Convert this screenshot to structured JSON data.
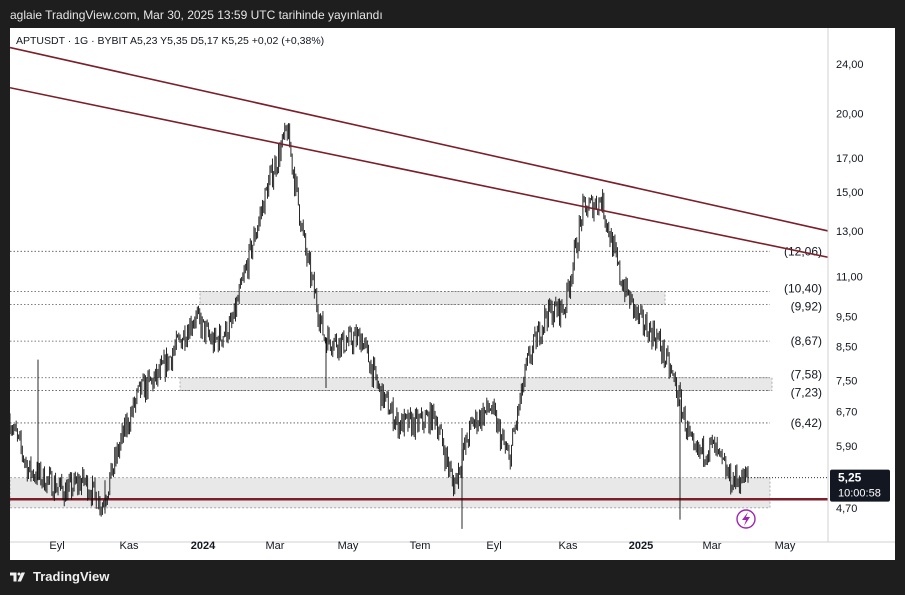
{
  "header": {
    "publish_line": "aglaie TradingView.com, Mar 30, 2025 13:59 UTC tarihinde yayınlandı"
  },
  "footer": {
    "brand": "TradingView"
  },
  "chart_data": {
    "type": "candlestick",
    "symbol_line": "APTUSDT · 1G · BYBIT  A5,23  Y5,35  D5,17  K5,25  +0,02 (+0,38%)",
    "price_axis_ticks": [
      "24,00",
      "20,00",
      "17,00",
      "15,00",
      "13,00",
      "11,00",
      "9,50",
      "8,50",
      "7,50",
      "6,70",
      "5,90",
      "4,70"
    ],
    "time_axis_ticks": [
      "Eyl",
      "Kas",
      "2024",
      "Mar",
      "May",
      "Tem",
      "Eyl",
      "Kas",
      "2025",
      "Mar",
      "May"
    ],
    "time_axis_bold": [
      "2024",
      "2025"
    ],
    "current_price": {
      "value": 5.25,
      "label": "5,25",
      "countdown": "10:00:58"
    },
    "horizontal_levels": [
      {
        "value": 12.06,
        "label": "(12,06)"
      },
      {
        "value": 10.4,
        "label": "(10,40)"
      },
      {
        "value": 9.92,
        "label": "(9,92)"
      },
      {
        "value": 8.67,
        "label": "(8,67)"
      },
      {
        "value": 7.58,
        "label": "(7,58)"
      },
      {
        "value": 7.23,
        "label": "(7,23)"
      },
      {
        "value": 6.42,
        "label": "(6,42)"
      }
    ],
    "zones": [
      {
        "low": 9.92,
        "high": 10.4
      },
      {
        "low": 7.23,
        "high": 7.58
      },
      {
        "low": 4.7,
        "high": 5.25
      }
    ],
    "support_line": {
      "value": 4.85
    },
    "trendlines": [
      {
        "name": "upper",
        "start": {
          "period": "2023-07",
          "price": 25.5
        },
        "end": {
          "period": "2025-05",
          "price": 13.0
        }
      },
      {
        "name": "lower",
        "start": {
          "period": "2023-07",
          "price": 22.0
        },
        "end": {
          "period": "2025-05",
          "price": 11.8
        }
      }
    ],
    "price_path": [
      [
        "2023-08",
        6.5
      ],
      [
        "2023-08-mid",
        5.4
      ],
      [
        "2023-09",
        5.2
      ],
      [
        "2023-09-mid",
        5.0
      ],
      [
        "2023-10",
        5.2
      ],
      [
        "2023-10-mid",
        4.75
      ],
      [
        "2023-11",
        6.0
      ],
      [
        "2023-11-mid",
        7.2
      ],
      [
        "2023-12",
        7.6
      ],
      [
        "2023-12-mid",
        8.5
      ],
      [
        "2024-01",
        9.5
      ],
      [
        "2024-01-mid",
        8.6
      ],
      [
        "2024-02",
        9.2
      ],
      [
        "2024-02-mid",
        12.0
      ],
      [
        "2024-03",
        15.5
      ],
      [
        "2024-03-mid",
        18.8
      ],
      [
        "2024-04",
        12.0
      ],
      [
        "2024-04-mid",
        8.8
      ],
      [
        "2024-05",
        8.6
      ],
      [
        "2024-05-mid",
        8.8
      ],
      [
        "2024-06",
        7.2
      ],
      [
        "2024-06-mid",
        6.4
      ],
      [
        "2024-07",
        6.4
      ],
      [
        "2024-07-mid",
        6.6
      ],
      [
        "2024-08",
        5.1
      ],
      [
        "2024-08-mid",
        6.4
      ],
      [
        "2024-09",
        6.8
      ],
      [
        "2024-09-mid",
        5.6
      ],
      [
        "2024-10",
        8.0
      ],
      [
        "2024-10-mid",
        9.6
      ],
      [
        "2024-11",
        9.8
      ],
      [
        "2024-11-mid",
        14.0
      ],
      [
        "2024-12",
        14.6
      ],
      [
        "2024-12-mid",
        11.0
      ],
      [
        "2025-01",
        9.4
      ],
      [
        "2025-01-mid",
        8.8
      ],
      [
        "2025-02",
        7.4
      ],
      [
        "2025-02-mid",
        5.7
      ],
      [
        "2025-03",
        5.9
      ],
      [
        "2025-03-mid",
        5.2
      ],
      [
        "2025-03-end",
        5.25
      ]
    ]
  }
}
